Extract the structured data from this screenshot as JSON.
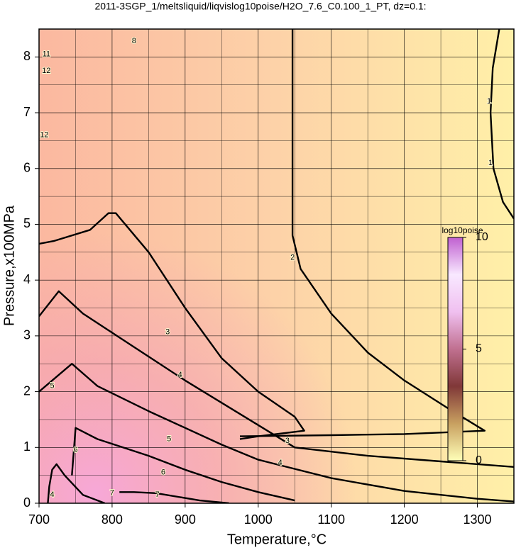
{
  "chart_data": {
    "type": "contour",
    "title": "2011-3SGP_1/meltsliquid/liqvislog10poise/H2O_7.6_C0.100_1_PT, dz=0.1:",
    "xlabel": "Temperature,°C",
    "ylabel": "Pressure,x100MPa",
    "xlim": [
      700,
      1350
    ],
    "ylim": [
      0,
      8.5
    ],
    "xticks": [
      700,
      800,
      900,
      1000,
      1100,
      1200,
      1300
    ],
    "yticks": [
      0,
      1,
      2,
      3,
      4,
      5,
      6,
      7,
      8
    ],
    "xminorticks": [
      750,
      850,
      950,
      1050,
      1150,
      1250
    ],
    "yminorticks": [
      0.5,
      1.5,
      2.5,
      3.5,
      4.5,
      5.5,
      6.5,
      7.5
    ],
    "grid": true,
    "contours": [
      {
        "x": [
          1330,
          1321,
          1318,
          1322,
          1335,
          1350
        ],
        "y": [
          8.5,
          7.8,
          7.0,
          6.0,
          5.4,
          5.1
        ]
      },
      {
        "x": [
          1047,
          1047,
          1047,
          1058,
          1100,
          1150,
          1200,
          1260,
          1310,
          1200,
          1100,
          975
        ],
        "y": [
          8.5,
          6.5,
          4.8,
          4.2,
          3.4,
          2.7,
          2.2,
          1.7,
          1.3,
          1.24,
          1.22,
          1.2
        ]
      },
      {
        "x": [
          700,
          720,
          770,
          795,
          805,
          850,
          900,
          950,
          1000,
          1050,
          1063,
          1000,
          975
        ],
        "y": [
          4.65,
          4.7,
          4.9,
          5.2,
          5.2,
          4.5,
          3.5,
          2.6,
          2.0,
          1.55,
          1.3,
          1.2,
          1.15
        ]
      },
      {
        "x": [
          700,
          727,
          760,
          830,
          900,
          1000,
          1050,
          1150,
          1250,
          1350
        ],
        "y": [
          3.35,
          3.8,
          3.4,
          2.8,
          2.2,
          1.4,
          1.0,
          0.85,
          0.75,
          0.65
        ]
      },
      {
        "x": [
          700,
          745,
          780,
          850,
          950,
          1000,
          1100,
          1200,
          1300,
          1350
        ],
        "y": [
          2.0,
          2.5,
          2.1,
          1.65,
          1.05,
          0.78,
          0.45,
          0.22,
          0.08,
          0.03
        ]
      },
      {
        "x": [
          745,
          750,
          780,
          850,
          900,
          950,
          1000,
          1050
        ],
        "y": [
          0.5,
          1.35,
          1.15,
          0.85,
          0.6,
          0.38,
          0.2,
          0.05
        ]
      },
      {
        "x": [
          810,
          830,
          860,
          920,
          960
        ],
        "y": [
          0.2,
          0.2,
          0.18,
          0.05,
          0
        ]
      },
      {
        "x": [
          712,
          714,
          718,
          724,
          735,
          760,
          790
        ],
        "y": [
          0,
          0.3,
          0.6,
          0.7,
          0.5,
          0.15,
          0
        ]
      }
    ],
    "contour_labels": [
      {
        "value": 1,
        "x": 1316,
        "y": 7.2
      },
      {
        "value": 1,
        "x": 1318,
        "y": 6.1
      },
      {
        "value": 2,
        "x": 1047,
        "y": 4.4
      },
      {
        "value": 3,
        "x": 876,
        "y": 3.07
      },
      {
        "value": 3,
        "x": 1040,
        "y": 1.12
      },
      {
        "value": 4,
        "x": 893,
        "y": 2.3
      },
      {
        "value": 4,
        "x": 1030,
        "y": 0.72
      },
      {
        "value": 5,
        "x": 718,
        "y": 2.1
      },
      {
        "value": 5,
        "x": 878,
        "y": 1.15
      },
      {
        "value": 6,
        "x": 750,
        "y": 0.95
      },
      {
        "value": 6,
        "x": 870,
        "y": 0.55
      },
      {
        "value": 7,
        "x": 800,
        "y": 0.18
      },
      {
        "value": 7,
        "x": 862,
        "y": 0.15
      },
      {
        "value": 12,
        "x": 707,
        "y": 6.6
      },
      {
        "value": 12,
        "x": 710,
        "y": 7.75
      },
      {
        "value": 11,
        "x": 710,
        "y": 8.05
      },
      {
        "value": 8,
        "x": 830,
        "y": 8.28
      },
      {
        "value": 4,
        "x": 718,
        "y": 0.15
      }
    ],
    "colorbar": {
      "label": "log10poise",
      "clim": [
        0,
        10
      ],
      "ticks": [
        0,
        5,
        10
      ],
      "colors": [
        "#ffffb8",
        "#c8a060",
        "#803838",
        "#c07090",
        "#f0c0f0",
        "#f8e8ff",
        "#c060d0"
      ]
    }
  }
}
